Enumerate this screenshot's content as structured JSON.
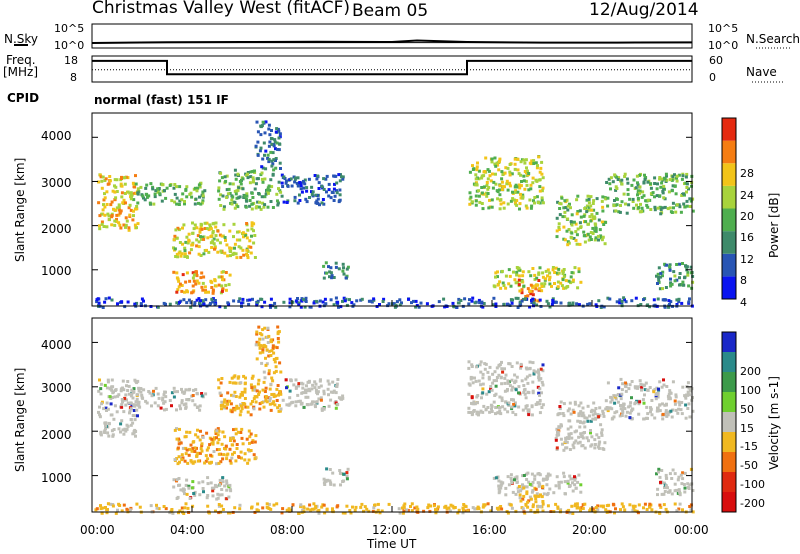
{
  "header": {
    "station": "Christmas Valley West (fitACF)",
    "beam": "Beam 05",
    "date": "12/Aug/2014"
  },
  "noise_panel": {
    "left_label": "N.Sky",
    "right_label": "N.Search",
    "left_ticks": [
      "10^5",
      "10^0"
    ],
    "right_ticks": [
      "10^5",
      "10^0"
    ]
  },
  "freq_panel": {
    "left_label_1": "Freq.",
    "left_label_2": "[MHz]",
    "right_label": "Nave",
    "left_ticks": [
      "18",
      "8"
    ],
    "right_ticks": [
      "60",
      "0"
    ]
  },
  "cpid_panel": {
    "label": "CPID",
    "value": "normal (fast) 151 IF"
  },
  "chart_data": [
    {
      "type": "line",
      "title": "N.Sky / N.Search",
      "x_range_hours": [
        0,
        24
      ],
      "y_scale": "log",
      "series": [
        {
          "name": "N.Sky",
          "points": [
            [
              0,
              8
            ],
            [
              3,
              12
            ],
            [
              6,
              14
            ],
            [
              9,
              15
            ],
            [
              12,
              14
            ],
            [
              13,
              30
            ],
            [
              15,
              14
            ],
            [
              18,
              10
            ],
            [
              21,
              10
            ],
            [
              24,
              11
            ]
          ]
        },
        {
          "name": "N.Search",
          "points": [
            [
              0,
              10
            ],
            [
              24,
              10
            ]
          ]
        }
      ]
    },
    {
      "type": "line",
      "title": "Freq. [MHz] / Nave",
      "ylim": [
        8,
        18
      ],
      "y2lim": [
        0,
        60
      ],
      "series": [
        {
          "name": "Freq.",
          "points": [
            [
              0,
              16.7
            ],
            [
              3.0,
              16.7
            ],
            [
              3.0,
              10.6
            ],
            [
              15.0,
              10.6
            ],
            [
              15.0,
              16.7
            ],
            [
              24,
              16.7
            ]
          ]
        },
        {
          "name": "Nave",
          "points": [
            [
              0,
              28
            ],
            [
              24,
              28
            ]
          ]
        }
      ]
    },
    {
      "type": "heatmap",
      "quantity": "Power",
      "ylabel": "Slant Range [km]",
      "yticks": [
        "1000",
        "2000",
        "3000",
        "4000"
      ],
      "ylim": [
        180,
        4550
      ],
      "colorbar_label": "Power [dB]",
      "colorbar_ticks": [
        "4",
        "8",
        "12",
        "16",
        "20",
        "24",
        "28"
      ],
      "colorbar_colors": [
        "#0a14f0",
        "#2855b4",
        "#3e8a6a",
        "#4fae4f",
        "#a8d33c",
        "#f2c419",
        "#f57d12",
        "#e52a10"
      ],
      "regions": [
        {
          "t": [
            0.2,
            1.8
          ],
          "r": [
            1900,
            3200
          ],
          "p": 22
        },
        {
          "t": [
            1.5,
            4.5
          ],
          "r": [
            2500,
            3000
          ],
          "p": 14
        },
        {
          "t": [
            3.2,
            6.5
          ],
          "r": [
            1300,
            2100
          ],
          "p": 20
        },
        {
          "t": [
            3.2,
            5.5
          ],
          "r": [
            500,
            1000
          ],
          "p": 24
        },
        {
          "t": [
            5.0,
            7.5
          ],
          "r": [
            2400,
            3300
          ],
          "p": 14
        },
        {
          "t": [
            6.5,
            7.5
          ],
          "r": [
            3300,
            4400
          ],
          "p": 8
        },
        {
          "t": [
            7.5,
            10.0
          ],
          "r": [
            2500,
            3200
          ],
          "p": 6
        },
        {
          "t": [
            9.2,
            10.2
          ],
          "r": [
            800,
            1200
          ],
          "p": 10
        },
        {
          "t": [
            15.0,
            18.0
          ],
          "r": [
            2400,
            3600
          ],
          "p": 18
        },
        {
          "t": [
            16.0,
            19.5
          ],
          "r": [
            600,
            1100
          ],
          "p": 18
        },
        {
          "t": [
            17.0,
            18.0
          ],
          "r": [
            300,
            800
          ],
          "p": 26
        },
        {
          "t": [
            18.5,
            20.5
          ],
          "r": [
            1600,
            2700
          ],
          "p": 16
        },
        {
          "t": [
            20.5,
            24.0
          ],
          "r": [
            2300,
            3200
          ],
          "p": 14
        },
        {
          "t": [
            22.5,
            24.0
          ],
          "r": [
            600,
            1200
          ],
          "p": 12
        },
        {
          "t": [
            0.0,
            24.0
          ],
          "r": [
            180,
            400
          ],
          "p": 6
        }
      ]
    },
    {
      "type": "heatmap",
      "quantity": "Velocity",
      "ylabel": "Slant Range [km]",
      "xlabel": "Time UT",
      "xticks": [
        "00:00",
        "04:00",
        "08:00",
        "12:00",
        "16:00",
        "20:00",
        "00:00"
      ],
      "yticks": [
        "1000",
        "2000",
        "3000",
        "4000"
      ],
      "ylim": [
        180,
        4550
      ],
      "colorbar_label": "Velocity [m s-1]",
      "colorbar_ticks": [
        "200",
        "100",
        "50",
        "15",
        "-15",
        "-50",
        "-100",
        "-200"
      ],
      "colorbar_colors": [
        "#1a28c8",
        "#2a8a8a",
        "#3c9a4a",
        "#6fcf2f",
        "#c0c0b8",
        "#f0b820",
        "#f07010",
        "#e02a10",
        "#d80e0e"
      ],
      "dominant_colors": {
        "ground_scatter": "#c0c0b8",
        "ionospheric": "#f0b820"
      }
    }
  ]
}
